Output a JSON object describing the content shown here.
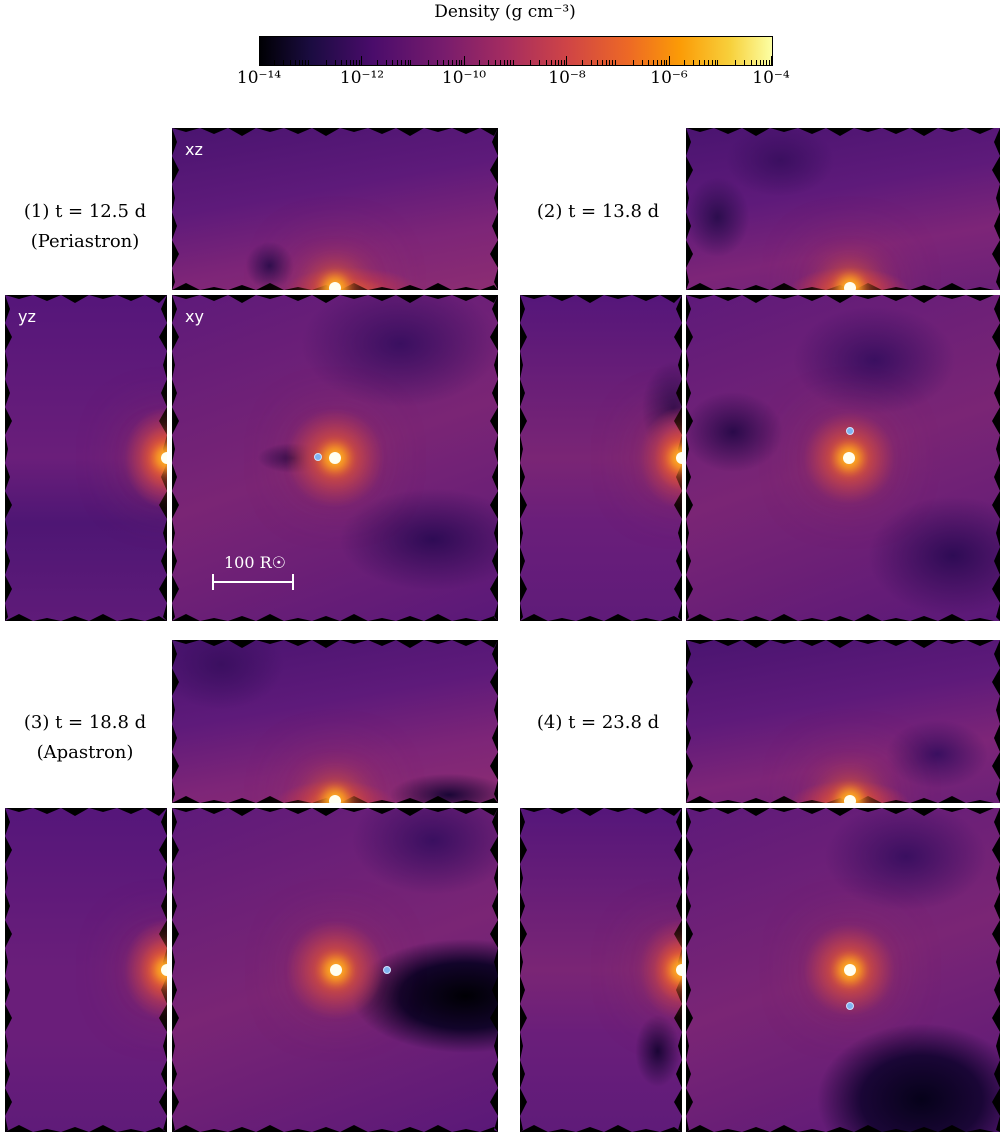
{
  "colorbar": {
    "title": "Density (g cm⁻³)",
    "ticks": [
      "10⁻¹⁴",
      "10⁻¹²",
      "10⁻¹⁰",
      "10⁻⁸",
      "10⁻⁶",
      "10⁻⁴"
    ]
  },
  "plane_labels": {
    "xz": "xz",
    "yz": "yz",
    "xy": "xy"
  },
  "scale_bar": "100 R☉",
  "blocks": [
    {
      "line1": "(1) t = 12.5 d",
      "line2": "(Periastron)"
    },
    {
      "line1": "(2) t = 13.8 d",
      "line2": ""
    },
    {
      "line1": "(3) t = 18.8 d",
      "line2": "(Apastron)"
    },
    {
      "line1": "(4) t = 23.8 d",
      "line2": ""
    }
  ],
  "colors": {
    "background": "#ffffff",
    "colormap": "inferno",
    "companion_marker": "#7fb3f0",
    "star_core": "#fffff0"
  }
}
